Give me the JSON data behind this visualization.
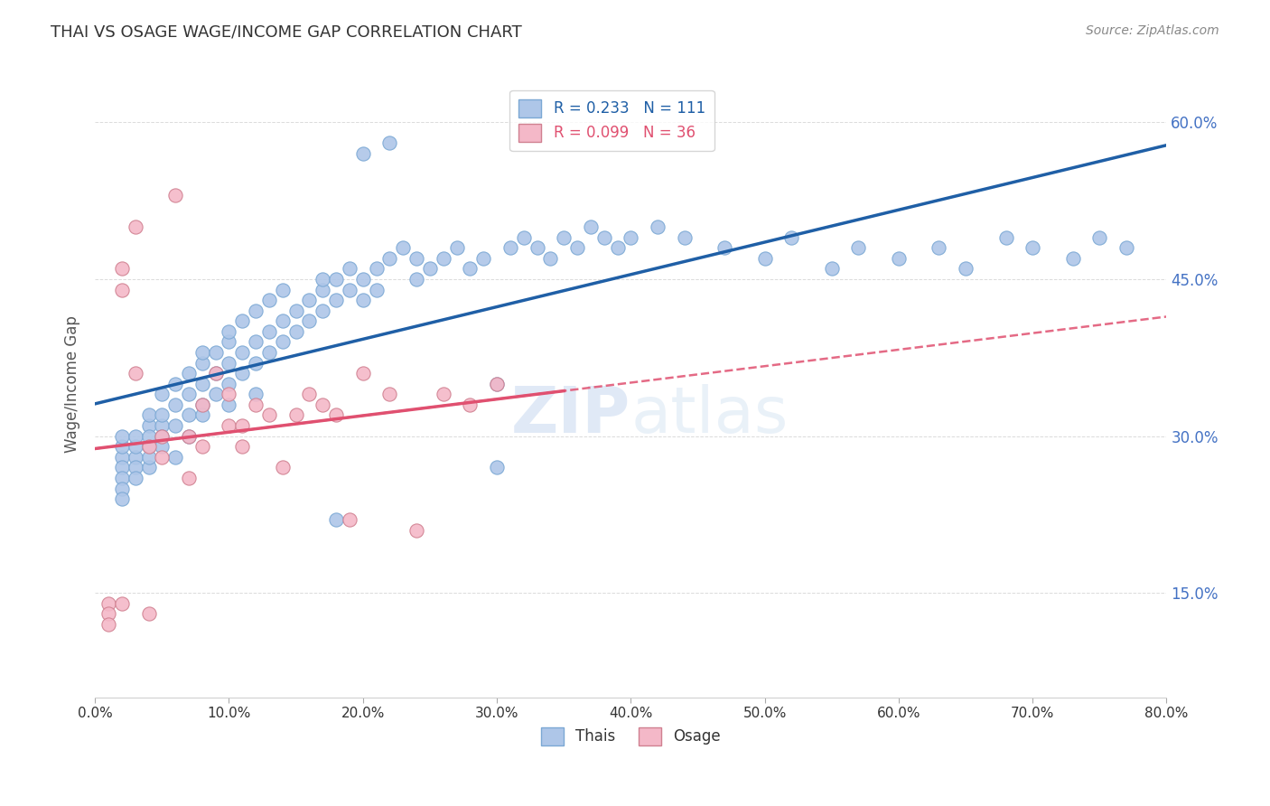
{
  "title": "THAI VS OSAGE WAGE/INCOME GAP CORRELATION CHART",
  "source": "Source: ZipAtlas.com",
  "xlabel_ticks": [
    "0.0%",
    "10.0%",
    "20.0%",
    "30.0%",
    "40.0%",
    "50.0%",
    "60.0%",
    "70.0%",
    "80.0%"
  ],
  "ylabel_ticks": [
    "15.0%",
    "30.0%",
    "45.0%",
    "60.0%"
  ],
  "xmin": 0.0,
  "xmax": 0.8,
  "ymin": 0.05,
  "ymax": 0.65,
  "legend_blue_R": "0.233",
  "legend_blue_N": "111",
  "legend_pink_R": "0.099",
  "legend_pink_N": "36",
  "legend_blue_label": "Thais",
  "legend_pink_label": "Osage",
  "watermark": "ZIPatlas",
  "thais_x": [
    0.02,
    0.02,
    0.02,
    0.02,
    0.02,
    0.02,
    0.02,
    0.03,
    0.03,
    0.03,
    0.03,
    0.03,
    0.04,
    0.04,
    0.04,
    0.04,
    0.04,
    0.04,
    0.05,
    0.05,
    0.05,
    0.05,
    0.05,
    0.06,
    0.06,
    0.06,
    0.06,
    0.07,
    0.07,
    0.07,
    0.07,
    0.08,
    0.08,
    0.08,
    0.08,
    0.08,
    0.09,
    0.09,
    0.09,
    0.1,
    0.1,
    0.1,
    0.1,
    0.1,
    0.11,
    0.11,
    0.11,
    0.12,
    0.12,
    0.12,
    0.12,
    0.13,
    0.13,
    0.13,
    0.14,
    0.14,
    0.14,
    0.15,
    0.15,
    0.16,
    0.16,
    0.17,
    0.17,
    0.17,
    0.18,
    0.18,
    0.19,
    0.19,
    0.2,
    0.2,
    0.21,
    0.21,
    0.22,
    0.23,
    0.24,
    0.24,
    0.25,
    0.26,
    0.27,
    0.28,
    0.29,
    0.3,
    0.31,
    0.32,
    0.33,
    0.34,
    0.35,
    0.36,
    0.37,
    0.38,
    0.39,
    0.4,
    0.42,
    0.44,
    0.47,
    0.5,
    0.52,
    0.55,
    0.57,
    0.6,
    0.63,
    0.65,
    0.68,
    0.7,
    0.73,
    0.75,
    0.77,
    0.2,
    0.22,
    0.18,
    0.3
  ],
  "thais_y": [
    0.28,
    0.27,
    0.26,
    0.25,
    0.24,
    0.29,
    0.3,
    0.28,
    0.27,
    0.29,
    0.3,
    0.26,
    0.31,
    0.29,
    0.27,
    0.3,
    0.32,
    0.28,
    0.31,
    0.3,
    0.32,
    0.34,
    0.29,
    0.33,
    0.35,
    0.31,
    0.28,
    0.34,
    0.32,
    0.36,
    0.3,
    0.33,
    0.35,
    0.37,
    0.38,
    0.32,
    0.36,
    0.38,
    0.34,
    0.37,
    0.39,
    0.35,
    0.4,
    0.33,
    0.38,
    0.41,
    0.36,
    0.39,
    0.42,
    0.37,
    0.34,
    0.4,
    0.43,
    0.38,
    0.41,
    0.44,
    0.39,
    0.42,
    0.4,
    0.43,
    0.41,
    0.44,
    0.45,
    0.42,
    0.45,
    0.43,
    0.46,
    0.44,
    0.45,
    0.43,
    0.46,
    0.44,
    0.47,
    0.48,
    0.47,
    0.45,
    0.46,
    0.47,
    0.48,
    0.46,
    0.47,
    0.35,
    0.48,
    0.49,
    0.48,
    0.47,
    0.49,
    0.48,
    0.5,
    0.49,
    0.48,
    0.49,
    0.5,
    0.49,
    0.48,
    0.47,
    0.49,
    0.46,
    0.48,
    0.47,
    0.48,
    0.46,
    0.49,
    0.48,
    0.47,
    0.49,
    0.48,
    0.57,
    0.58,
    0.22,
    0.27
  ],
  "osage_x": [
    0.01,
    0.01,
    0.01,
    0.02,
    0.02,
    0.02,
    0.03,
    0.03,
    0.04,
    0.04,
    0.05,
    0.05,
    0.06,
    0.07,
    0.07,
    0.08,
    0.08,
    0.09,
    0.1,
    0.1,
    0.11,
    0.11,
    0.12,
    0.13,
    0.14,
    0.15,
    0.16,
    0.17,
    0.18,
    0.19,
    0.2,
    0.22,
    0.24,
    0.26,
    0.28,
    0.3
  ],
  "osage_y": [
    0.14,
    0.13,
    0.12,
    0.46,
    0.14,
    0.44,
    0.5,
    0.36,
    0.29,
    0.13,
    0.28,
    0.3,
    0.53,
    0.26,
    0.3,
    0.29,
    0.33,
    0.36,
    0.31,
    0.34,
    0.29,
    0.31,
    0.33,
    0.32,
    0.27,
    0.32,
    0.34,
    0.33,
    0.32,
    0.22,
    0.36,
    0.34,
    0.21,
    0.34,
    0.33,
    0.35
  ],
  "dot_size": 120,
  "blue_color": "#aec6e8",
  "blue_line_color": "#1f5fa6",
  "pink_color": "#f4b8c8",
  "pink_line_color": "#e05070",
  "pink_dash_color": "#e05070",
  "ylabel": "Wage/Income Gap",
  "grid_color": "#cccccc",
  "title_color": "#333333",
  "axis_label_color": "#4472c4",
  "right_axis_color": "#4472c4"
}
